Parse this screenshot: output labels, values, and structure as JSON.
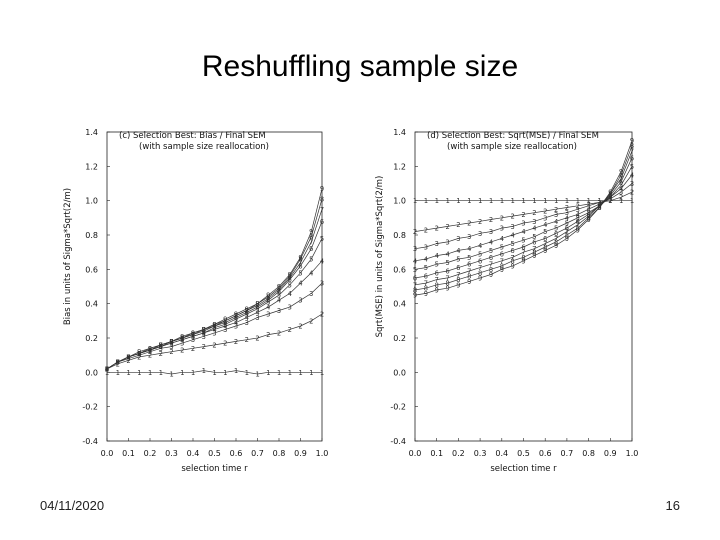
{
  "slide": {
    "title": "Reshuffling sample size",
    "date": "04/11/2020",
    "page_number": "16"
  },
  "chart_data": [
    {
      "type": "line",
      "panel_title": "(c) Selection Best: Bias / Final SEM",
      "panel_subtitle": "(with sample size reallocation)",
      "xlabel": "selection time r",
      "ylabel": "Bias in units of Sigma*Sqrt(2/m)",
      "xlim": [
        0.0,
        1.0
      ],
      "ylim": [
        -0.4,
        1.4
      ],
      "xticks": [
        "0.0",
        "0.1",
        "0.2",
        "0.3",
        "0.4",
        "0.5",
        "0.6",
        "0.7",
        "0.8",
        "0.9",
        "1.0"
      ],
      "yticks": [
        "1.4",
        "1.2",
        "1.0",
        "0.8",
        "0.6",
        "0.4",
        "0.2",
        "0.0",
        "-0.2",
        "-0.4"
      ],
      "x": [
        0.0,
        0.05,
        0.1,
        0.15,
        0.2,
        0.25,
        0.3,
        0.35,
        0.4,
        0.45,
        0.5,
        0.55,
        0.6,
        0.65,
        0.7,
        0.75,
        0.8,
        0.85,
        0.9,
        0.95,
        1.0
      ],
      "series": [
        {
          "marker": "1",
          "values": [
            0.0,
            0.0,
            0.0,
            0.0,
            0.0,
            0.0,
            -0.01,
            0.0,
            0.0,
            0.01,
            0.0,
            0.0,
            0.01,
            0.0,
            -0.01,
            0.0,
            0.0,
            0.0,
            0.0,
            0.0,
            0.0
          ]
        },
        {
          "marker": "2",
          "values": [
            0.02,
            0.05,
            0.07,
            0.09,
            0.1,
            0.11,
            0.12,
            0.13,
            0.14,
            0.15,
            0.16,
            0.17,
            0.18,
            0.19,
            0.2,
            0.22,
            0.23,
            0.25,
            0.27,
            0.3,
            0.34
          ]
        },
        {
          "marker": "3",
          "values": [
            0.02,
            0.06,
            0.08,
            0.1,
            0.12,
            0.14,
            0.15,
            0.17,
            0.19,
            0.21,
            0.23,
            0.25,
            0.27,
            0.29,
            0.32,
            0.34,
            0.36,
            0.38,
            0.42,
            0.46,
            0.52
          ]
        },
        {
          "marker": "4",
          "values": [
            0.02,
            0.06,
            0.09,
            0.11,
            0.13,
            0.15,
            0.17,
            0.19,
            0.21,
            0.23,
            0.25,
            0.27,
            0.29,
            0.32,
            0.35,
            0.38,
            0.42,
            0.46,
            0.52,
            0.58,
            0.65
          ]
        },
        {
          "marker": "5",
          "values": [
            0.02,
            0.06,
            0.09,
            0.11,
            0.13,
            0.15,
            0.17,
            0.19,
            0.21,
            0.23,
            0.26,
            0.28,
            0.31,
            0.34,
            0.37,
            0.41,
            0.45,
            0.51,
            0.58,
            0.66,
            0.78
          ]
        },
        {
          "marker": "6",
          "values": [
            0.02,
            0.06,
            0.09,
            0.11,
            0.13,
            0.15,
            0.18,
            0.2,
            0.22,
            0.24,
            0.27,
            0.29,
            0.32,
            0.35,
            0.38,
            0.42,
            0.47,
            0.54,
            0.62,
            0.72,
            0.88
          ]
        },
        {
          "marker": "7",
          "values": [
            0.02,
            0.06,
            0.09,
            0.11,
            0.13,
            0.16,
            0.18,
            0.2,
            0.22,
            0.25,
            0.27,
            0.3,
            0.33,
            0.36,
            0.39,
            0.43,
            0.48,
            0.55,
            0.64,
            0.76,
            0.95
          ]
        },
        {
          "marker": "8",
          "values": [
            0.02,
            0.06,
            0.09,
            0.11,
            0.14,
            0.16,
            0.18,
            0.2,
            0.23,
            0.25,
            0.28,
            0.3,
            0.33,
            0.36,
            0.4,
            0.44,
            0.49,
            0.56,
            0.66,
            0.79,
            1.01
          ]
        },
        {
          "marker": "9",
          "values": [
            0.02,
            0.06,
            0.09,
            0.12,
            0.14,
            0.16,
            0.18,
            0.21,
            0.23,
            0.25,
            0.28,
            0.31,
            0.34,
            0.37,
            0.4,
            0.45,
            0.5,
            0.57,
            0.67,
            0.82,
            1.07
          ]
        }
      ]
    },
    {
      "type": "line",
      "panel_title": "(d) Selection Best: Sqrt(MSE) / Final SEM",
      "panel_subtitle": "(with sample size reallocation)",
      "xlabel": "selection time r",
      "ylabel": "Sqrt(MSE) in units of Sigma*Sqrt(2/m)",
      "xlim": [
        0.0,
        1.0
      ],
      "ylim": [
        -0.4,
        1.4
      ],
      "xticks": [
        "0.0",
        "0.1",
        "0.2",
        "0.3",
        "0.4",
        "0.5",
        "0.6",
        "0.7",
        "0.8",
        "0.9",
        "1.0"
      ],
      "yticks": [
        "1.4",
        "1.2",
        "1.0",
        "0.8",
        "0.6",
        "0.4",
        "0.2",
        "0.0",
        "-0.2",
        "-0.4"
      ],
      "x": [
        0.0,
        0.05,
        0.1,
        0.15,
        0.2,
        0.25,
        0.3,
        0.35,
        0.4,
        0.45,
        0.5,
        0.55,
        0.6,
        0.65,
        0.7,
        0.75,
        0.8,
        0.85,
        0.9,
        0.95,
        1.0
      ],
      "series": [
        {
          "marker": "1",
          "values": [
            1.0,
            1.0,
            1.0,
            1.0,
            1.0,
            1.0,
            1.0,
            1.0,
            1.0,
            1.0,
            1.0,
            1.0,
            1.0,
            1.0,
            1.0,
            1.0,
            1.0,
            1.0,
            1.0,
            1.0,
            1.0
          ]
        },
        {
          "marker": "2",
          "values": [
            0.82,
            0.83,
            0.84,
            0.85,
            0.86,
            0.87,
            0.88,
            0.89,
            0.9,
            0.91,
            0.92,
            0.93,
            0.94,
            0.95,
            0.96,
            0.97,
            0.98,
            0.99,
            1.0,
            1.02,
            1.05
          ]
        },
        {
          "marker": "3",
          "values": [
            0.72,
            0.73,
            0.75,
            0.76,
            0.78,
            0.79,
            0.81,
            0.82,
            0.84,
            0.85,
            0.87,
            0.88,
            0.9,
            0.92,
            0.93,
            0.95,
            0.97,
            0.99,
            1.01,
            1.05,
            1.1
          ]
        },
        {
          "marker": "4",
          "values": [
            0.65,
            0.66,
            0.68,
            0.69,
            0.71,
            0.72,
            0.74,
            0.76,
            0.78,
            0.8,
            0.82,
            0.84,
            0.86,
            0.88,
            0.9,
            0.92,
            0.95,
            0.98,
            1.02,
            1.07,
            1.15
          ]
        },
        {
          "marker": "5",
          "values": [
            0.6,
            0.61,
            0.63,
            0.64,
            0.66,
            0.67,
            0.69,
            0.71,
            0.73,
            0.75,
            0.77,
            0.79,
            0.82,
            0.84,
            0.87,
            0.9,
            0.93,
            0.97,
            1.02,
            1.09,
            1.2
          ]
        },
        {
          "marker": "6",
          "values": [
            0.55,
            0.56,
            0.58,
            0.59,
            0.61,
            0.63,
            0.65,
            0.67,
            0.69,
            0.71,
            0.73,
            0.76,
            0.78,
            0.81,
            0.84,
            0.88,
            0.92,
            0.97,
            1.03,
            1.11,
            1.25
          ]
        },
        {
          "marker": "7",
          "values": [
            0.51,
            0.52,
            0.54,
            0.55,
            0.57,
            0.59,
            0.61,
            0.63,
            0.65,
            0.67,
            0.7,
            0.72,
            0.75,
            0.78,
            0.82,
            0.86,
            0.91,
            0.97,
            1.04,
            1.13,
            1.29
          ]
        },
        {
          "marker": "8",
          "values": [
            0.48,
            0.49,
            0.51,
            0.52,
            0.54,
            0.56,
            0.58,
            0.6,
            0.62,
            0.65,
            0.67,
            0.7,
            0.73,
            0.76,
            0.8,
            0.84,
            0.9,
            0.96,
            1.04,
            1.15,
            1.32
          ]
        },
        {
          "marker": "9",
          "values": [
            0.45,
            0.46,
            0.48,
            0.49,
            0.51,
            0.53,
            0.55,
            0.57,
            0.6,
            0.62,
            0.65,
            0.68,
            0.71,
            0.74,
            0.78,
            0.83,
            0.89,
            0.96,
            1.05,
            1.17,
            1.35
          ]
        }
      ]
    }
  ]
}
